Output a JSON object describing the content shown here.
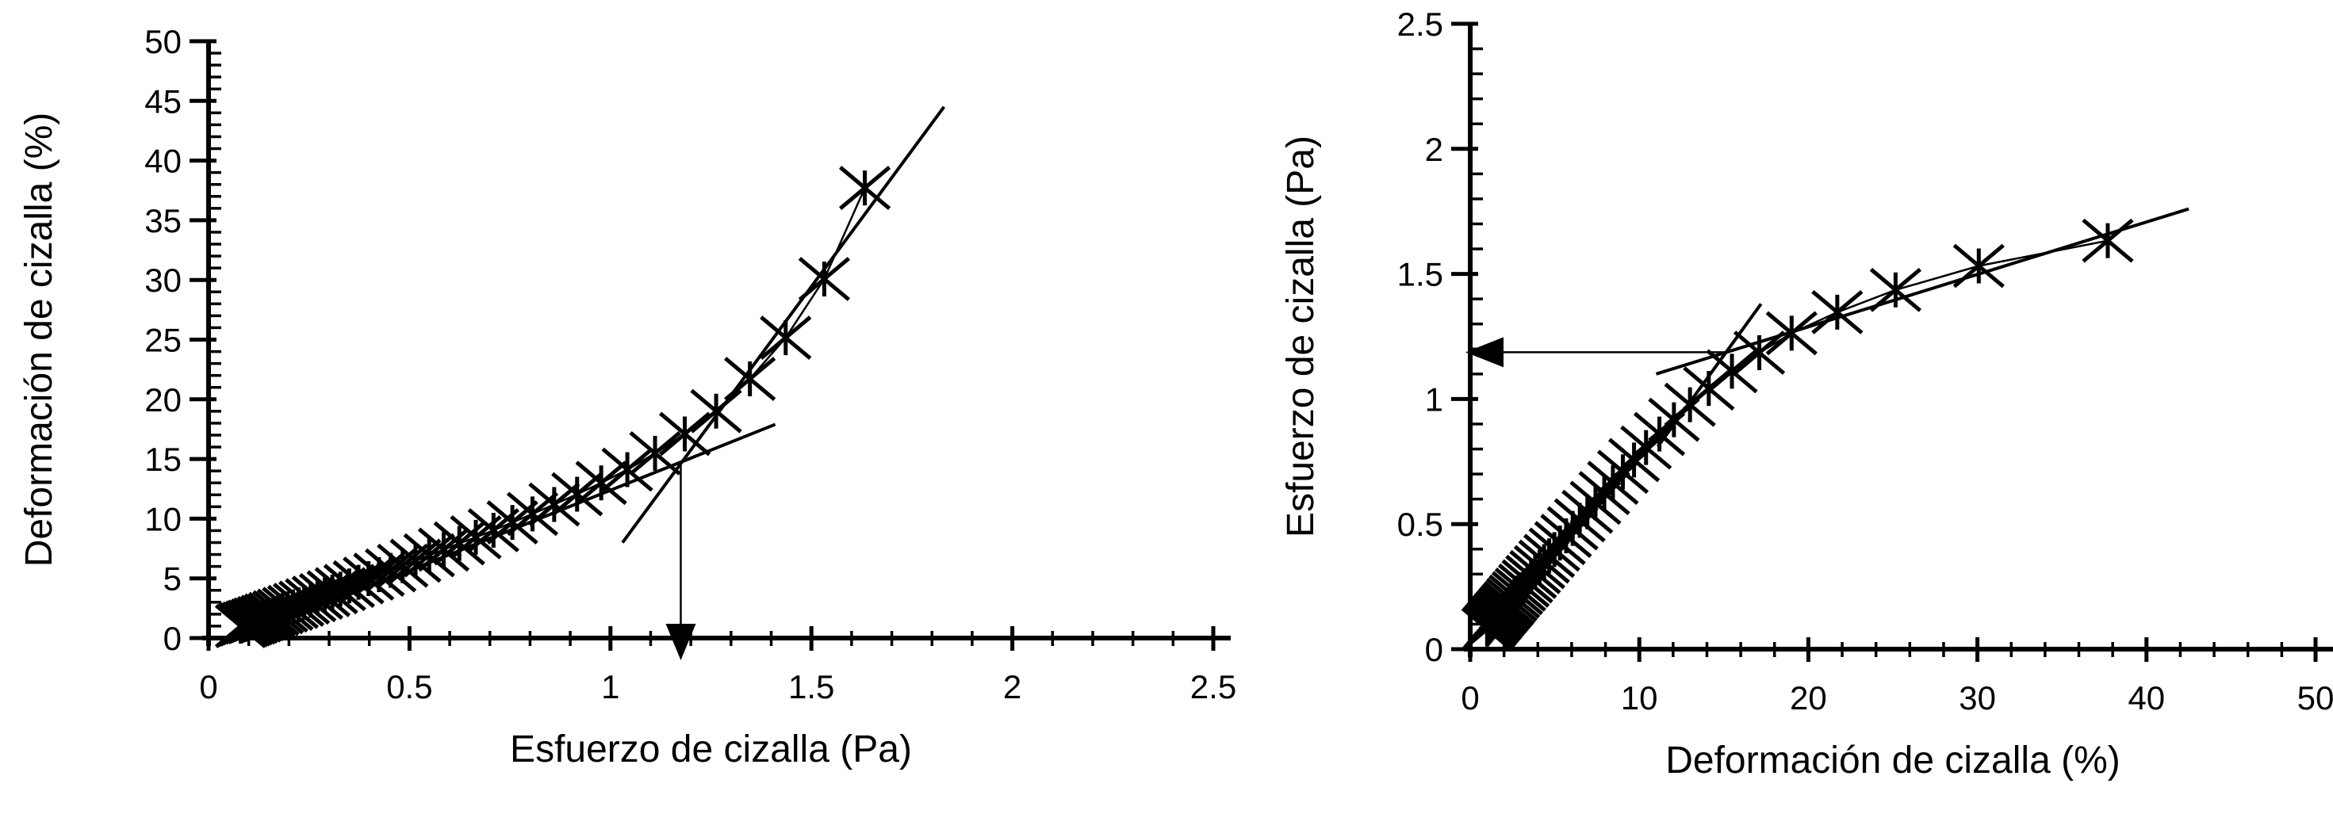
{
  "page": {
    "background": "#ffffff",
    "ink": "#000000"
  },
  "chart_data": [
    {
      "id": "left-chart",
      "type": "scatter",
      "title": "",
      "xlabel": "Esfuerzo de cizalla (Pa)",
      "ylabel": "Deformación de cizalla (%)",
      "xlim": [
        0,
        2.5
      ],
      "ylim": [
        0,
        50
      ],
      "x_major_ticks": [
        0,
        0.5,
        1,
        1.5,
        2,
        2.5
      ],
      "x_tick_labels": [
        "0",
        "0.5",
        "1",
        "1.5",
        "2",
        "2.5"
      ],
      "x_minor_step": 0.1,
      "y_major_ticks": [
        0,
        5,
        10,
        15,
        20,
        25,
        30,
        35,
        40,
        45,
        50
      ],
      "y_tick_labels": [
        "0",
        "5",
        "10",
        "15",
        "20",
        "25",
        "30",
        "35",
        "40",
        "45",
        "50"
      ],
      "y_minor_step": 1,
      "grid": false,
      "legend": null,
      "marker": "asterisk",
      "color": "#000000",
      "series": [
        {
          "name": "deformacion-vs-esfuerzo",
          "x": [
            0.08,
            0.085,
            0.091,
            0.097,
            0.104,
            0.11,
            0.118,
            0.125,
            0.134,
            0.143,
            0.152,
            0.162,
            0.173,
            0.184,
            0.197,
            0.21,
            0.224,
            0.238,
            0.254,
            0.271,
            0.289,
            0.308,
            0.328,
            0.35,
            0.373,
            0.398,
            0.424,
            0.453,
            0.483,
            0.515,
            0.549,
            0.585,
            0.624,
            0.665,
            0.709,
            0.756,
            0.806,
            0.86,
            0.917,
            0.977,
            1.042,
            1.111,
            1.185,
            1.263,
            1.347,
            1.436,
            1.532,
            1.633
          ],
          "y": [
            1.0,
            1.07,
            1.14,
            1.22,
            1.3,
            1.38,
            1.47,
            1.57,
            1.67,
            1.78,
            1.9,
            2.02,
            2.16,
            2.3,
            2.45,
            2.61,
            2.79,
            2.97,
            3.17,
            3.38,
            3.6,
            3.84,
            4.1,
            4.37,
            4.67,
            4.98,
            5.31,
            5.67,
            6.06,
            6.48,
            6.93,
            7.41,
            7.93,
            8.44,
            9.03,
            9.69,
            10.4,
            11.19,
            12.05,
            13.0,
            14.11,
            15.48,
            17.1,
            19.01,
            21.71,
            25.16,
            30.08,
            37.71
          ]
        }
      ],
      "trend_lines": [
        {
          "name": "linear-region-fit",
          "x1": 0.05,
          "y1": -0.4,
          "x2": 1.41,
          "y2": 17.9
        },
        {
          "name": "flow-region-fit",
          "x1": 1.03,
          "y1": 8.0,
          "x2": 1.83,
          "y2": 44.5
        }
      ],
      "arrow": {
        "name": "yield-point-arrow",
        "x1": 1.175,
        "y1": 14.8,
        "x2": 1.175,
        "y2": 0,
        "direction": "down"
      }
    },
    {
      "id": "right-chart",
      "type": "scatter",
      "title": "",
      "xlabel": "Deformación de cizalla (%)",
      "ylabel": "Esfuerzo de cizalla (Pa)",
      "xlim": [
        0,
        50
      ],
      "ylim": [
        0,
        2.5
      ],
      "x_major_ticks": [
        0,
        10,
        20,
        30,
        40,
        50
      ],
      "x_tick_labels": [
        "0",
        "10",
        "20",
        "30",
        "40",
        "50"
      ],
      "x_minor_step": 2,
      "y_major_ticks": [
        0,
        0.5,
        1,
        1.5,
        2,
        2.5
      ],
      "y_tick_labels": [
        "0",
        "0.5",
        "1",
        "1.5",
        "2",
        "2.5"
      ],
      "y_minor_step": 0.1,
      "grid": false,
      "legend": null,
      "marker": "asterisk",
      "color": "#000000",
      "series": [
        {
          "name": "esfuerzo-vs-deformacion",
          "x": [
            1.0,
            1.07,
            1.14,
            1.22,
            1.3,
            1.38,
            1.47,
            1.57,
            1.67,
            1.78,
            1.9,
            2.02,
            2.16,
            2.3,
            2.45,
            2.61,
            2.79,
            2.97,
            3.17,
            3.38,
            3.6,
            3.84,
            4.1,
            4.37,
            4.67,
            4.98,
            5.31,
            5.67,
            6.06,
            6.48,
            6.93,
            7.41,
            7.93,
            8.44,
            9.03,
            9.69,
            10.4,
            11.19,
            12.05,
            13.0,
            14.11,
            15.48,
            17.1,
            19.01,
            21.71,
            25.16,
            30.08,
            37.71
          ],
          "y": [
            0.08,
            0.085,
            0.091,
            0.097,
            0.104,
            0.11,
            0.118,
            0.125,
            0.134,
            0.143,
            0.152,
            0.162,
            0.173,
            0.184,
            0.197,
            0.21,
            0.224,
            0.238,
            0.254,
            0.271,
            0.289,
            0.308,
            0.328,
            0.35,
            0.373,
            0.398,
            0.424,
            0.453,
            0.483,
            0.515,
            0.549,
            0.585,
            0.624,
            0.665,
            0.709,
            0.756,
            0.806,
            0.86,
            0.917,
            0.977,
            1.042,
            1.111,
            1.185,
            1.263,
            1.347,
            1.436,
            1.532,
            1.633
          ]
        }
      ],
      "trend_lines": [
        {
          "name": "flow-region-fit",
          "x1": 11.0,
          "y1": 1.1,
          "x2": 42.5,
          "y2": 1.76
        },
        {
          "name": "linear-region-fit",
          "x1": 11.1,
          "y1": 0.81,
          "x2": 17.2,
          "y2": 1.38
        }
      ],
      "arrow": {
        "name": "yield-point-arrow",
        "x1": 15.13,
        "y1": 1.187,
        "x2": 0,
        "y2": 1.187,
        "direction": "left"
      }
    }
  ]
}
